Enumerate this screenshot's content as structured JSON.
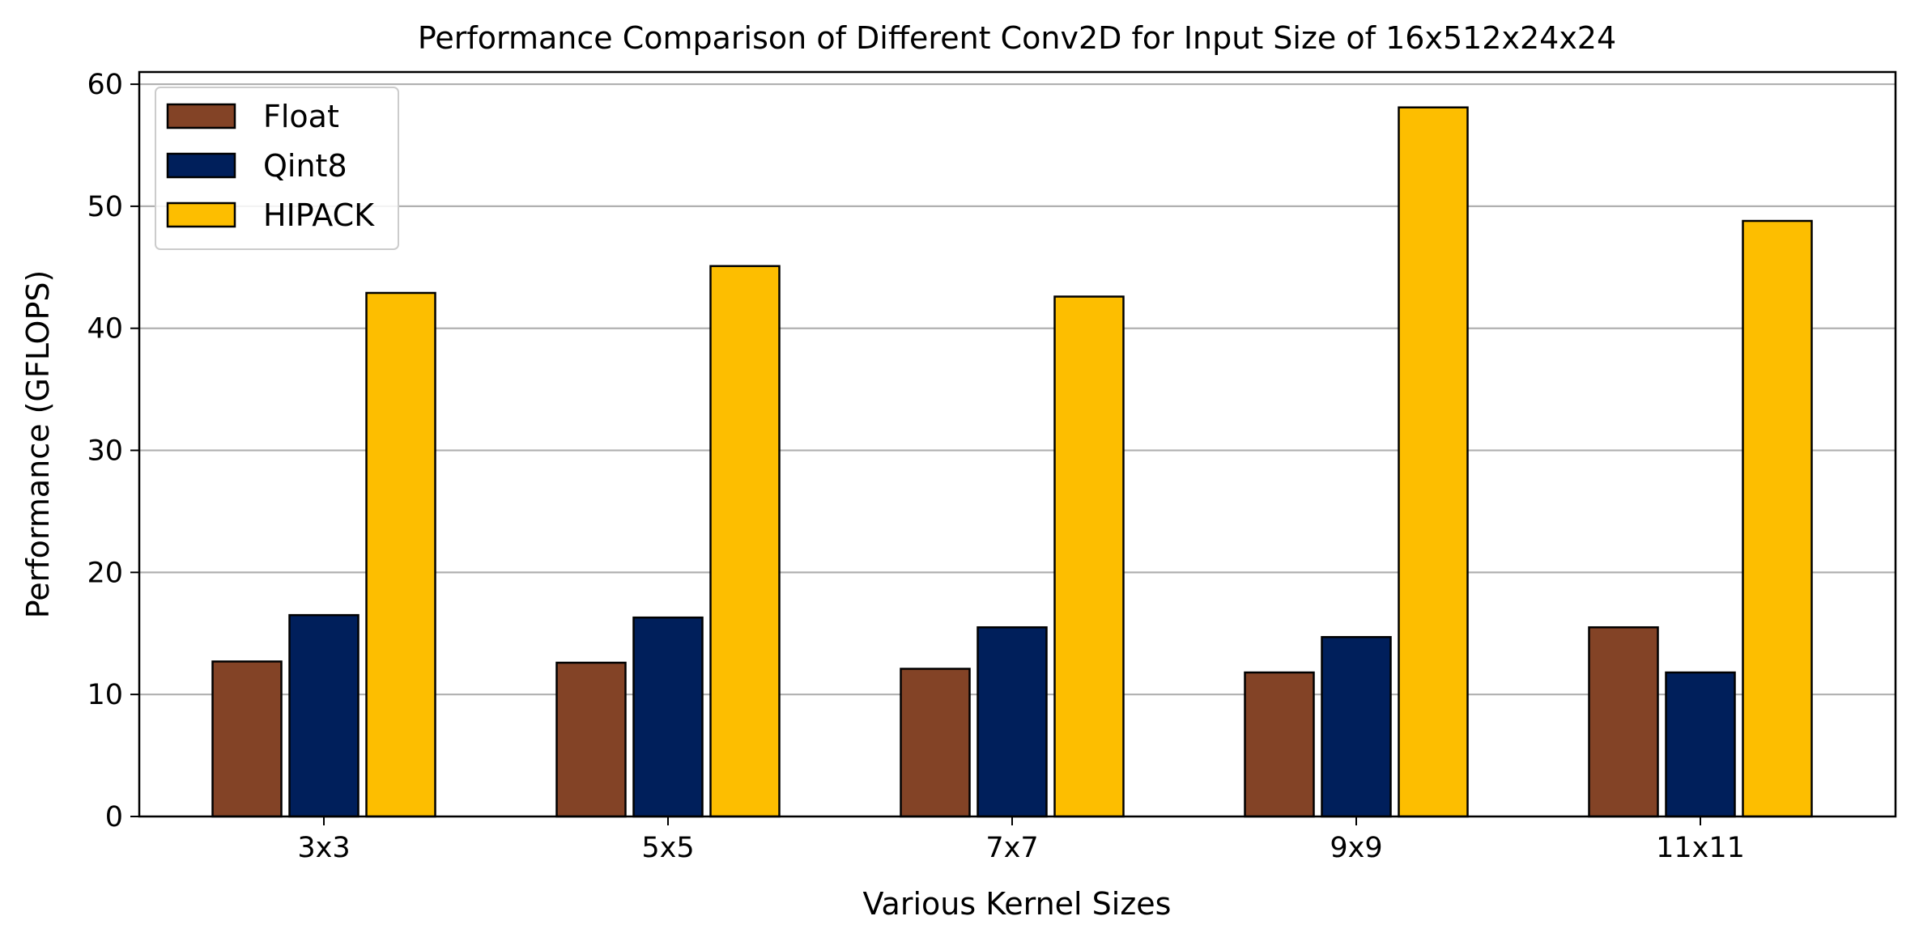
{
  "chart_data": {
    "type": "bar",
    "title": "Performance Comparison of Different Conv2D for Input Size of 16x512x24x24",
    "xlabel": "Various Kernel Sizes",
    "ylabel": "Performance (GFLOPS)",
    "categories": [
      "3x3",
      "5x5",
      "7x7",
      "9x9",
      "11x11"
    ],
    "series": [
      {
        "name": "Float",
        "color": "#834326",
        "values": [
          12.7,
          12.6,
          12.1,
          11.8,
          15.5
        ]
      },
      {
        "name": "Qint8",
        "color": "#001F5B",
        "values": [
          16.5,
          16.3,
          15.5,
          14.7,
          11.8
        ]
      },
      {
        "name": "HIPACK",
        "color": "#FDBE00",
        "values": [
          42.9,
          45.1,
          42.6,
          58.1,
          48.8
        ]
      }
    ],
    "ylim": [
      0,
      61
    ],
    "yticks": [
      0,
      10,
      20,
      30,
      40,
      50,
      60
    ],
    "grid": "horizontal",
    "legend_position": "top-left"
  }
}
